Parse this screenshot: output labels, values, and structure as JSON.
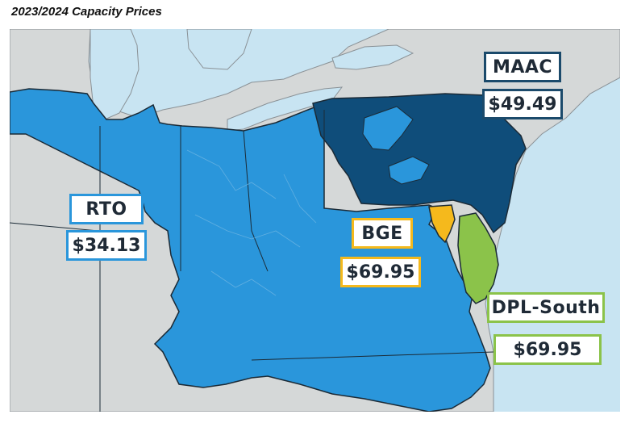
{
  "title": "2023/2024 Capacity Prices",
  "zones": {
    "rto": {
      "name": "RTO",
      "price": "$34.13",
      "color": "#2a96db"
    },
    "maac": {
      "name": "MAAC",
      "price": "$49.49",
      "color": "#0f4d7a"
    },
    "bge": {
      "name": "BGE",
      "price": "$69.95",
      "color": "#f5b91c"
    },
    "dpl_south": {
      "name": "DPL-South",
      "price": "$69.95",
      "color": "#8bc34a"
    }
  },
  "colors": {
    "water": "#c8e4f2",
    "land": "#d5d8d8",
    "border": "#1b2a36"
  }
}
